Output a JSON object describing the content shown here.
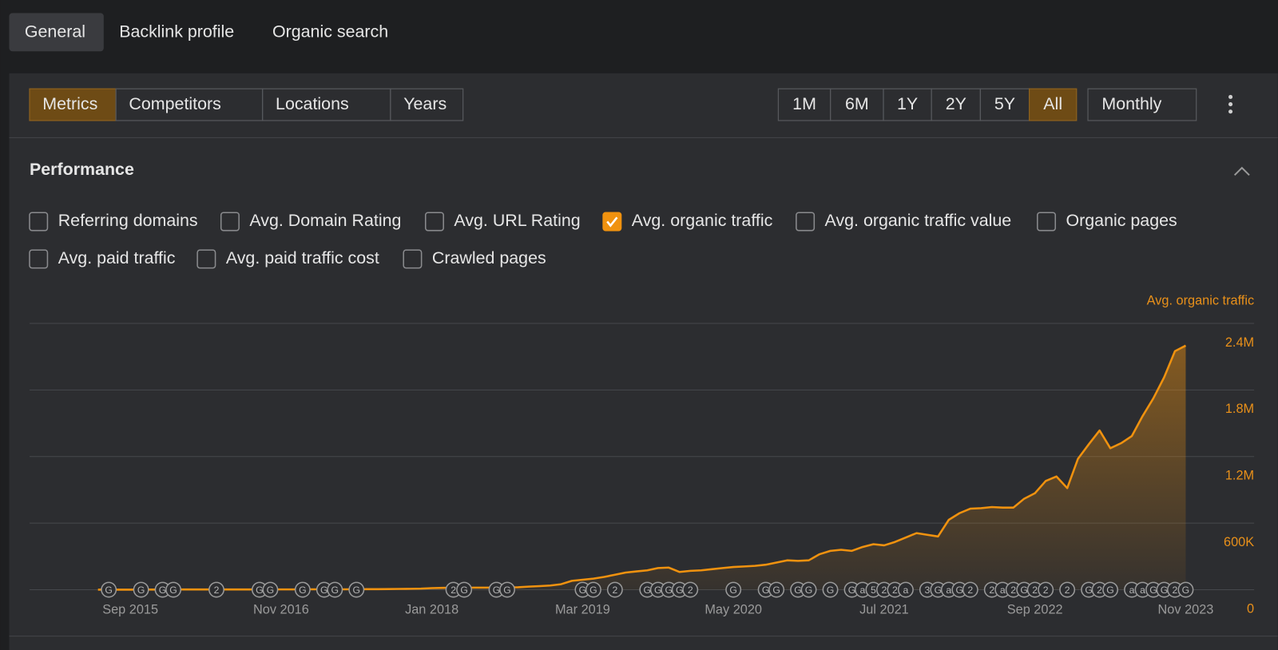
{
  "tabs": [
    {
      "label": "General",
      "selected": true
    },
    {
      "label": "Backlink profile",
      "selected": false
    },
    {
      "label": "Organic search",
      "selected": false
    }
  ],
  "toolbar": {
    "views": [
      {
        "label": "Metrics",
        "selected": true
      },
      {
        "label": "Competitors",
        "selected": false
      },
      {
        "label": "Locations",
        "selected": false
      },
      {
        "label": "Years",
        "selected": false
      }
    ],
    "ranges": [
      {
        "label": "1M",
        "selected": false
      },
      {
        "label": "6M",
        "selected": false
      },
      {
        "label": "1Y",
        "selected": false
      },
      {
        "label": "2Y",
        "selected": false
      },
      {
        "label": "5Y",
        "selected": false
      },
      {
        "label": "All",
        "selected": true
      }
    ],
    "interval": "Monthly"
  },
  "section_title": "Performance",
  "metrics": [
    {
      "label": "Referring domains",
      "checked": false
    },
    {
      "label": "Avg. Domain Rating",
      "checked": false
    },
    {
      "label": "Avg. URL Rating",
      "checked": false
    },
    {
      "label": "Avg. organic traffic",
      "checked": true
    },
    {
      "label": "Avg. organic traffic value",
      "checked": false
    },
    {
      "label": "Organic pages",
      "checked": false
    },
    {
      "label": "Avg. paid traffic",
      "checked": false
    },
    {
      "label": "Avg. paid traffic cost",
      "checked": false
    },
    {
      "label": "Crawled pages",
      "checked": false
    }
  ],
  "chart_data": {
    "type": "line",
    "area": true,
    "grid": true,
    "categories": [
      null,
      null,
      null,
      "Sep 2015",
      null,
      null,
      null,
      null,
      null,
      null,
      null,
      null,
      null,
      null,
      null,
      null,
      null,
      "Nov 2016",
      null,
      null,
      null,
      null,
      null,
      null,
      null,
      null,
      null,
      null,
      null,
      null,
      null,
      "Jan 2018",
      null,
      null,
      null,
      null,
      null,
      null,
      null,
      null,
      null,
      null,
      null,
      null,
      null,
      "Mar 2019",
      null,
      null,
      null,
      null,
      null,
      null,
      null,
      null,
      null,
      null,
      null,
      null,
      null,
      "May 2020",
      null,
      null,
      null,
      null,
      null,
      null,
      null,
      null,
      null,
      null,
      null,
      null,
      null,
      "Jul 2021",
      null,
      null,
      null,
      null,
      null,
      null,
      null,
      null,
      null,
      null,
      null,
      null,
      null,
      "Sep 2022",
      null,
      null,
      null,
      null,
      null,
      null,
      null,
      null,
      null,
      null,
      null,
      null,
      null,
      "Nov 2023"
    ],
    "series": [
      {
        "name": "Avg. organic traffic",
        "color": "#f0920f",
        "values": [
          1000,
          1000,
          1000,
          1000,
          1500,
          1500,
          1500,
          2000,
          2000,
          2000,
          2000,
          2000,
          2500,
          2500,
          2500,
          3000,
          3000,
          3000,
          3000,
          3500,
          3500,
          4000,
          4000,
          4000,
          4500,
          5000,
          5500,
          6000,
          7000,
          8000,
          10000,
          15000,
          17000,
          18000,
          18000,
          19000,
          19000,
          20000,
          20000,
          22000,
          28000,
          32000,
          38000,
          50000,
          80000,
          90000,
          100000,
          115000,
          135000,
          155000,
          165000,
          175000,
          195000,
          200000,
          160000,
          170000,
          175000,
          185000,
          195000,
          205000,
          210000,
          215000,
          225000,
          245000,
          265000,
          260000,
          265000,
          320000,
          350000,
          360000,
          350000,
          385000,
          410000,
          400000,
          430000,
          470000,
          510000,
          495000,
          480000,
          630000,
          690000,
          730000,
          735000,
          745000,
          740000,
          740000,
          820000,
          870000,
          980000,
          1020000,
          915000,
          1180000,
          1310000,
          1435000,
          1275000,
          1320000,
          1385000,
          1565000,
          1725000,
          1915000,
          2150000,
          2200000
        ]
      }
    ],
    "ylim": [
      0,
      2400000
    ],
    "yticks": [
      0,
      {
        "value": 600000,
        "label": "600K"
      },
      {
        "value": 1200000,
        "label": "1.2M"
      },
      {
        "value": 1800000,
        "label": "1.8M"
      },
      {
        "value": 2400000,
        "label": "2.4M"
      }
    ],
    "events": [
      {
        "label": "G",
        "at": 1
      },
      {
        "label": "G",
        "at": 4
      },
      {
        "label": "G",
        "at": 6
      },
      {
        "label": "G",
        "at": 7
      },
      {
        "label": "2",
        "at": 11
      },
      {
        "label": "G",
        "at": 15
      },
      {
        "label": "G",
        "at": 16
      },
      {
        "label": "G",
        "at": 19
      },
      {
        "label": "G",
        "at": 21
      },
      {
        "label": "G",
        "at": 22
      },
      {
        "label": "G",
        "at": 24
      },
      {
        "label": "2",
        "at": 33
      },
      {
        "label": "G",
        "at": 34
      },
      {
        "label": "G",
        "at": 37
      },
      {
        "label": "G",
        "at": 38
      },
      {
        "label": "G",
        "at": 45
      },
      {
        "label": "G",
        "at": 46
      },
      {
        "label": "2",
        "at": 48
      },
      {
        "label": "G",
        "at": 51
      },
      {
        "label": "G",
        "at": 52
      },
      {
        "label": "G",
        "at": 53
      },
      {
        "label": "G",
        "at": 54
      },
      {
        "label": "2",
        "at": 55
      },
      {
        "label": "G",
        "at": 59
      },
      {
        "label": "G",
        "at": 62
      },
      {
        "label": "G",
        "at": 63
      },
      {
        "label": "G",
        "at": 65
      },
      {
        "label": "G",
        "at": 66
      },
      {
        "label": "G",
        "at": 68
      },
      {
        "label": "G",
        "at": 70
      },
      {
        "label": "a",
        "at": 71
      },
      {
        "label": "5",
        "at": 72
      },
      {
        "label": "2",
        "at": 73
      },
      {
        "label": "2",
        "at": 74
      },
      {
        "label": "a",
        "at": 75
      },
      {
        "label": "3",
        "at": 77
      },
      {
        "label": "G",
        "at": 78
      },
      {
        "label": "a",
        "at": 79
      },
      {
        "label": "G",
        "at": 80
      },
      {
        "label": "2",
        "at": 81
      },
      {
        "label": "2",
        "at": 83
      },
      {
        "label": "a",
        "at": 84
      },
      {
        "label": "2",
        "at": 85
      },
      {
        "label": "G",
        "at": 86
      },
      {
        "label": "2",
        "at": 87
      },
      {
        "label": "2",
        "at": 88
      },
      {
        "label": "2",
        "at": 90
      },
      {
        "label": "G",
        "at": 92
      },
      {
        "label": "2",
        "at": 93
      },
      {
        "label": "G",
        "at": 94
      },
      {
        "label": "a",
        "at": 96
      },
      {
        "label": "a",
        "at": 97
      },
      {
        "label": "G",
        "at": 98
      },
      {
        "label": "G",
        "at": 99
      },
      {
        "label": "2",
        "at": 100
      },
      {
        "label": "G",
        "at": 101
      }
    ]
  }
}
